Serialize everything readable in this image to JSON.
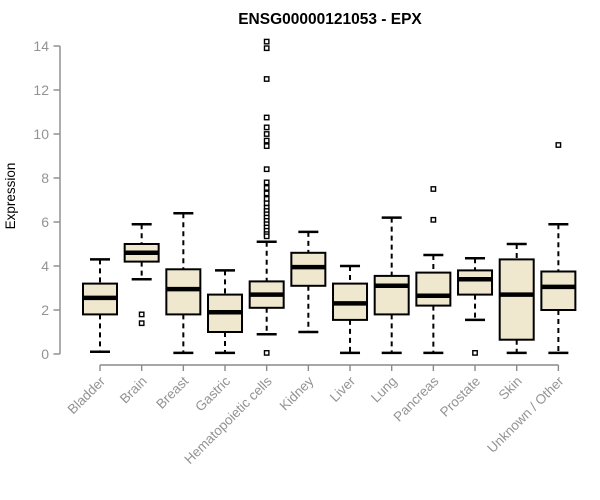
{
  "chart_data": {
    "type": "boxplot",
    "title": "ENSG00000121053 - EPX",
    "ylabel": "Expression",
    "xlabel": "",
    "ylim": [
      0,
      14
    ],
    "yticks": [
      0,
      2,
      4,
      6,
      8,
      10,
      12,
      14
    ],
    "grid": "off",
    "legend": "none",
    "categories": [
      "Bladder",
      "Brain",
      "Breast",
      "Gastric",
      "Hematopoietic cells",
      "Kidney",
      "Liver",
      "Lung",
      "Pancreas",
      "Prostate",
      "Skin",
      "Unknown / Other"
    ],
    "series": [
      {
        "name": "Bladder",
        "low": 0.1,
        "q1": 1.8,
        "median": 2.55,
        "q3": 3.2,
        "high": 4.3,
        "outliers": []
      },
      {
        "name": "Brain",
        "low": 3.4,
        "q1": 4.2,
        "median": 4.6,
        "q3": 5.0,
        "high": 5.9,
        "outliers": [
          1.8,
          1.4
        ]
      },
      {
        "name": "Breast",
        "low": 0.05,
        "q1": 1.8,
        "median": 2.95,
        "q3": 3.85,
        "high": 6.4,
        "outliers": []
      },
      {
        "name": "Gastric",
        "low": 0.05,
        "q1": 1.0,
        "median": 1.9,
        "q3": 2.7,
        "high": 3.8,
        "outliers": []
      },
      {
        "name": "Hematopoietic cells",
        "low": 0.9,
        "q1": 2.1,
        "median": 2.7,
        "q3": 3.3,
        "high": 5.1,
        "outliers": [
          14.2,
          13.9,
          12.5,
          10.75,
          10.3,
          10.0,
          9.7,
          9.45,
          8.4,
          7.8,
          7.55,
          7.3,
          7.05,
          6.85,
          6.65,
          6.5,
          6.35,
          6.2,
          6.05,
          5.9,
          5.75,
          5.6,
          5.45,
          5.35,
          0.05
        ]
      },
      {
        "name": "Kidney",
        "low": 1.0,
        "q1": 3.1,
        "median": 3.95,
        "q3": 4.6,
        "high": 5.55,
        "outliers": []
      },
      {
        "name": "Liver",
        "low": 0.05,
        "q1": 1.55,
        "median": 2.3,
        "q3": 3.2,
        "high": 4.0,
        "outliers": []
      },
      {
        "name": "Lung",
        "low": 0.05,
        "q1": 1.8,
        "median": 3.1,
        "q3": 3.55,
        "high": 6.2,
        "outliers": []
      },
      {
        "name": "Pancreas",
        "low": 0.05,
        "q1": 2.2,
        "median": 2.65,
        "q3": 3.7,
        "high": 4.5,
        "outliers": [
          7.5,
          6.1
        ]
      },
      {
        "name": "Prostate",
        "low": 1.55,
        "q1": 2.7,
        "median": 3.4,
        "q3": 3.8,
        "high": 4.35,
        "outliers": [
          0.05
        ]
      },
      {
        "name": "Skin",
        "low": 0.05,
        "q1": 0.65,
        "median": 2.7,
        "q3": 4.3,
        "high": 5.0,
        "outliers": []
      },
      {
        "name": "Unknown / Other",
        "low": 0.05,
        "q1": 2.0,
        "median": 3.05,
        "q3": 3.75,
        "high": 5.9,
        "outliers": [
          9.5
        ]
      }
    ],
    "colors": {
      "background": "#ffffff",
      "box_fill": "#EFE8CE",
      "box_border": "#000000",
      "median": "#000000",
      "whisker": "#000000",
      "outlier_fill": "#ffffff",
      "axis": "#8a8a8a",
      "tick_label": "#939393",
      "title": "#000000"
    }
  }
}
